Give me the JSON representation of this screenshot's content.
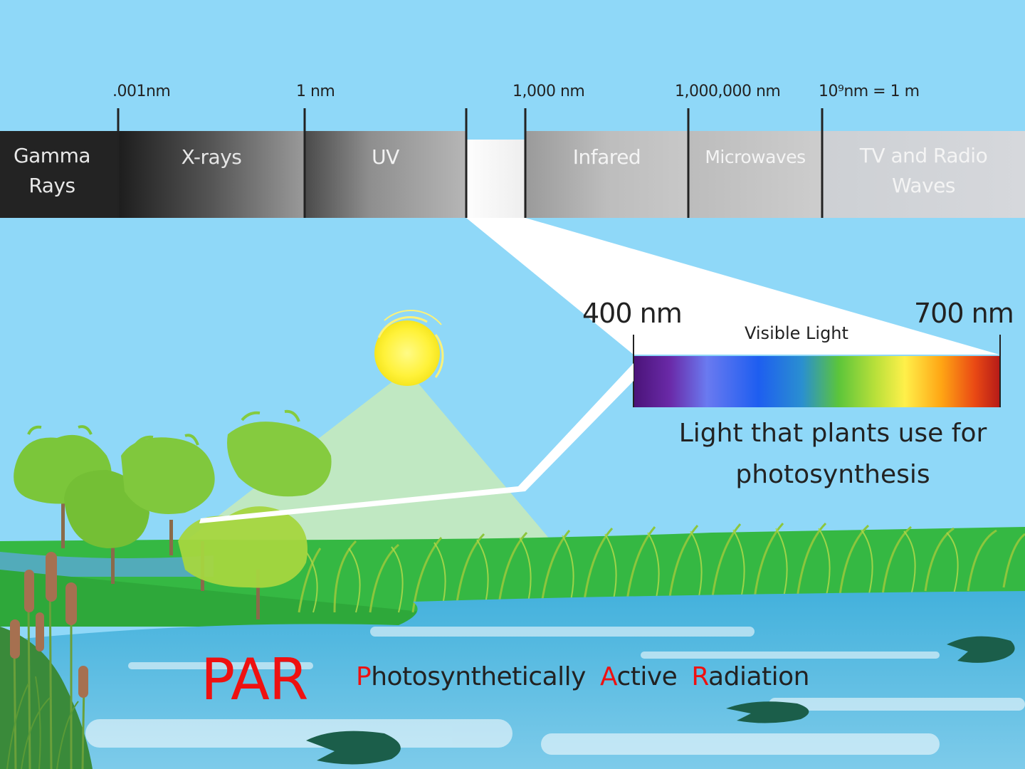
{
  "wavelength_ticks": [
    ".001nm",
    "1 nm",
    "1,000 nm",
    "1,000,000 nm",
    "10⁹nm = 1 m"
  ],
  "bands": [
    {
      "label_line1": "Gamma",
      "label_line2": "Rays"
    },
    {
      "label_line1": "X-rays",
      "label_line2": ""
    },
    {
      "label_line1": "UV",
      "label_line2": ""
    },
    {
      "label_line1": "Infared",
      "label_line2": ""
    },
    {
      "label_line1": "Microwaves",
      "label_line2": ""
    },
    {
      "label_line1": "TV and Radio",
      "label_line2": "Waves"
    }
  ],
  "visible": {
    "start_label": "400 nm",
    "end_label": "700 nm",
    "title": "Visible Light",
    "caption_line1": "Light that plants use for",
    "caption_line2": "photosynthesis"
  },
  "par": {
    "acronym": "PAR",
    "word1_initial": "P",
    "word1_rest": "hotosynthetically",
    "word2_initial": "A",
    "word2_rest": "ctive",
    "word3_initial": "R",
    "word3_rest": "adiation"
  },
  "colors": {
    "sky": "#8fd8f8",
    "grass": "#35b843",
    "water": "#48b6dd",
    "par_red": "#ee1111",
    "tree_green": "#7bc63a",
    "sun": "#fff23a"
  }
}
